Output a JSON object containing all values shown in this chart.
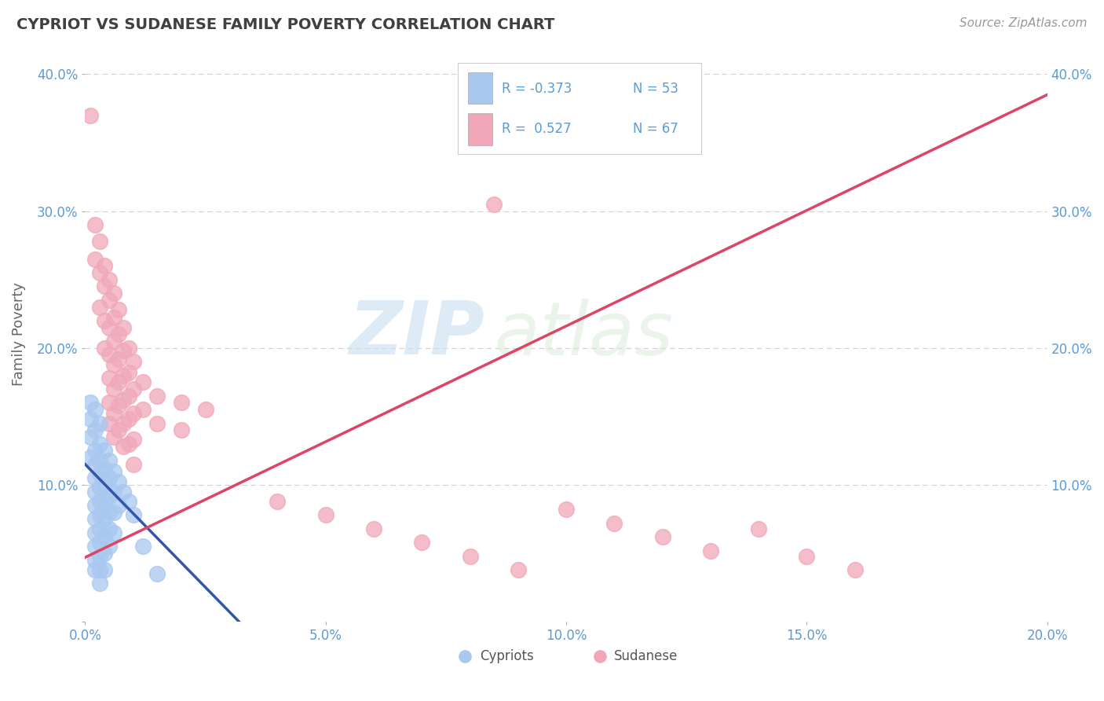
{
  "title": "CYPRIOT VS SUDANESE FAMILY POVERTY CORRELATION CHART",
  "source": "Source: ZipAtlas.com",
  "ylabel": "Family Poverty",
  "xlim": [
    0.0,
    0.2
  ],
  "ylim": [
    0.0,
    0.42
  ],
  "xticks": [
    0.0,
    0.05,
    0.1,
    0.15,
    0.2
  ],
  "xticklabels": [
    "0.0%",
    "5.0%",
    "10.0%",
    "15.0%",
    "20.0%"
  ],
  "yticks": [
    0.0,
    0.1,
    0.2,
    0.3,
    0.4
  ],
  "yticklabels": [
    "",
    "10.0%",
    "20.0%",
    "30.0%",
    "40.0%"
  ],
  "cypriot_color": "#A8C8F0",
  "sudanese_color": "#F0A8B8",
  "cypriot_line_color": "#3355AA",
  "sudanese_line_color": "#DD4466",
  "R_cypriot": -0.373,
  "N_cypriot": 53,
  "R_sudanese": 0.527,
  "N_sudanese": 67,
  "watermark_zip": "ZIP",
  "watermark_atlas": "atlas",
  "background_color": "#FFFFFF",
  "grid_color": "#CCCCCC",
  "title_color": "#404040",
  "tick_color": "#5B9BD5",
  "cypriot_line_x": [
    0.0,
    0.032
  ],
  "cypriot_line_y": [
    0.115,
    0.0
  ],
  "sudanese_line_x": [
    0.0,
    0.2
  ],
  "sudanese_line_y": [
    0.047,
    0.385
  ],
  "cypriot_scatter": [
    [
      0.001,
      0.16
    ],
    [
      0.001,
      0.148
    ],
    [
      0.001,
      0.135
    ],
    [
      0.001,
      0.12
    ],
    [
      0.002,
      0.155
    ],
    [
      0.002,
      0.14
    ],
    [
      0.002,
      0.125
    ],
    [
      0.002,
      0.115
    ],
    [
      0.002,
      0.105
    ],
    [
      0.002,
      0.095
    ],
    [
      0.002,
      0.085
    ],
    [
      0.002,
      0.075
    ],
    [
      0.002,
      0.065
    ],
    [
      0.002,
      0.055
    ],
    [
      0.002,
      0.045
    ],
    [
      0.002,
      0.038
    ],
    [
      0.003,
      0.145
    ],
    [
      0.003,
      0.13
    ],
    [
      0.003,
      0.118
    ],
    [
      0.003,
      0.108
    ],
    [
      0.003,
      0.098
    ],
    [
      0.003,
      0.088
    ],
    [
      0.003,
      0.078
    ],
    [
      0.003,
      0.068
    ],
    [
      0.003,
      0.058
    ],
    [
      0.003,
      0.048
    ],
    [
      0.003,
      0.038
    ],
    [
      0.003,
      0.028
    ],
    [
      0.004,
      0.125
    ],
    [
      0.004,
      0.112
    ],
    [
      0.004,
      0.1
    ],
    [
      0.004,
      0.088
    ],
    [
      0.004,
      0.075
    ],
    [
      0.004,
      0.062
    ],
    [
      0.004,
      0.05
    ],
    [
      0.004,
      0.038
    ],
    [
      0.005,
      0.118
    ],
    [
      0.005,
      0.105
    ],
    [
      0.005,
      0.092
    ],
    [
      0.005,
      0.08
    ],
    [
      0.005,
      0.068
    ],
    [
      0.005,
      0.055
    ],
    [
      0.006,
      0.11
    ],
    [
      0.006,
      0.095
    ],
    [
      0.006,
      0.08
    ],
    [
      0.006,
      0.065
    ],
    [
      0.007,
      0.102
    ],
    [
      0.007,
      0.085
    ],
    [
      0.008,
      0.095
    ],
    [
      0.009,
      0.088
    ],
    [
      0.01,
      0.078
    ],
    [
      0.012,
      0.055
    ],
    [
      0.015,
      0.035
    ]
  ],
  "sudanese_scatter": [
    [
      0.001,
      0.37
    ],
    [
      0.002,
      0.29
    ],
    [
      0.002,
      0.265
    ],
    [
      0.003,
      0.278
    ],
    [
      0.003,
      0.255
    ],
    [
      0.003,
      0.23
    ],
    [
      0.004,
      0.26
    ],
    [
      0.004,
      0.245
    ],
    [
      0.004,
      0.22
    ],
    [
      0.004,
      0.2
    ],
    [
      0.005,
      0.25
    ],
    [
      0.005,
      0.235
    ],
    [
      0.005,
      0.215
    ],
    [
      0.005,
      0.195
    ],
    [
      0.005,
      0.178
    ],
    [
      0.005,
      0.16
    ],
    [
      0.005,
      0.145
    ],
    [
      0.006,
      0.24
    ],
    [
      0.006,
      0.222
    ],
    [
      0.006,
      0.205
    ],
    [
      0.006,
      0.188
    ],
    [
      0.006,
      0.17
    ],
    [
      0.006,
      0.152
    ],
    [
      0.006,
      0.135
    ],
    [
      0.007,
      0.228
    ],
    [
      0.007,
      0.21
    ],
    [
      0.007,
      0.192
    ],
    [
      0.007,
      0.175
    ],
    [
      0.007,
      0.158
    ],
    [
      0.007,
      0.14
    ],
    [
      0.008,
      0.215
    ],
    [
      0.008,
      0.198
    ],
    [
      0.008,
      0.18
    ],
    [
      0.008,
      0.162
    ],
    [
      0.008,
      0.145
    ],
    [
      0.008,
      0.128
    ],
    [
      0.009,
      0.2
    ],
    [
      0.009,
      0.182
    ],
    [
      0.009,
      0.165
    ],
    [
      0.009,
      0.148
    ],
    [
      0.009,
      0.13
    ],
    [
      0.01,
      0.19
    ],
    [
      0.01,
      0.17
    ],
    [
      0.01,
      0.152
    ],
    [
      0.01,
      0.133
    ],
    [
      0.01,
      0.115
    ],
    [
      0.012,
      0.175
    ],
    [
      0.012,
      0.155
    ],
    [
      0.015,
      0.165
    ],
    [
      0.015,
      0.145
    ],
    [
      0.02,
      0.16
    ],
    [
      0.02,
      0.14
    ],
    [
      0.025,
      0.155
    ],
    [
      0.04,
      0.088
    ],
    [
      0.05,
      0.078
    ],
    [
      0.06,
      0.068
    ],
    [
      0.07,
      0.058
    ],
    [
      0.08,
      0.048
    ],
    [
      0.085,
      0.305
    ],
    [
      0.09,
      0.038
    ],
    [
      0.1,
      0.082
    ],
    [
      0.11,
      0.072
    ],
    [
      0.12,
      0.062
    ],
    [
      0.13,
      0.052
    ],
    [
      0.14,
      0.068
    ],
    [
      0.15,
      0.048
    ],
    [
      0.16,
      0.038
    ]
  ]
}
